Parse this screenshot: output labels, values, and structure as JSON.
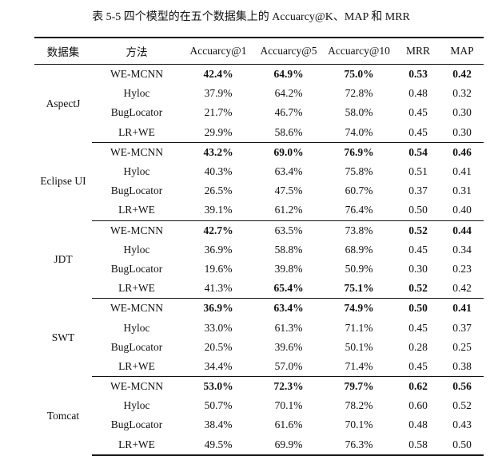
{
  "caption": "表 5-5 四个模型的在五个数据集上的 Accuarcy@K、MAP 和 MRR",
  "table": {
    "headers": [
      "数据集",
      "方法",
      "Accuarcy@1",
      "Accuarcy@5",
      "Accuarcy@10",
      "MRR",
      "MAP"
    ],
    "groups": [
      {
        "dataset": "AspectJ",
        "rows": [
          {
            "method": "WE-MCNN",
            "values": [
              "42.4%",
              "64.9%",
              "75.0%",
              "0.53",
              "0.42"
            ],
            "bold": [
              true,
              true,
              true,
              true,
              true
            ]
          },
          {
            "method": "Hyloc",
            "values": [
              "37.9%",
              "64.2%",
              "72.8%",
              "0.48",
              "0.32"
            ],
            "bold": [
              false,
              false,
              false,
              false,
              false
            ]
          },
          {
            "method": "BugLocator",
            "values": [
              "21.7%",
              "46.7%",
              "58.0%",
              "0.45",
              "0.30"
            ],
            "bold": [
              false,
              false,
              false,
              false,
              false
            ]
          },
          {
            "method": "LR+WE",
            "values": [
              "29.9%",
              "58.6%",
              "74.0%",
              "0.45",
              "0.30"
            ],
            "bold": [
              false,
              false,
              false,
              false,
              false
            ]
          }
        ]
      },
      {
        "dataset": "Eclipse UI",
        "rows": [
          {
            "method": "WE-MCNN",
            "values": [
              "43.2%",
              "69.0%",
              "76.9%",
              "0.54",
              "0.46"
            ],
            "bold": [
              true,
              true,
              true,
              true,
              true
            ]
          },
          {
            "method": "Hyloc",
            "values": [
              "40.3%",
              "63.4%",
              "75.8%",
              "0.51",
              "0.41"
            ],
            "bold": [
              false,
              false,
              false,
              false,
              false
            ]
          },
          {
            "method": "BugLocator",
            "values": [
              "26.5%",
              "47.5%",
              "60.7%",
              "0.37",
              "0.31"
            ],
            "bold": [
              false,
              false,
              false,
              false,
              false
            ]
          },
          {
            "method": "LR+WE",
            "values": [
              "39.1%",
              "61.2%",
              "76.4%",
              "0.50",
              "0.40"
            ],
            "bold": [
              false,
              false,
              false,
              false,
              false
            ]
          }
        ]
      },
      {
        "dataset": "JDT",
        "rows": [
          {
            "method": "WE-MCNN",
            "values": [
              "42.7%",
              "63.5%",
              "73.8%",
              "0.52",
              "0.44"
            ],
            "bold": [
              true,
              false,
              false,
              true,
              true
            ]
          },
          {
            "method": "Hyloc",
            "values": [
              "36.9%",
              "58.8%",
              "68.9%",
              "0.45",
              "0.34"
            ],
            "bold": [
              false,
              false,
              false,
              false,
              false
            ]
          },
          {
            "method": "BugLocator",
            "values": [
              "19.6%",
              "39.8%",
              "50.9%",
              "0.30",
              "0.23"
            ],
            "bold": [
              false,
              false,
              false,
              false,
              false
            ]
          },
          {
            "method": "LR+WE",
            "values": [
              "41.3%",
              "65.4%",
              "75.1%",
              "0.52",
              "0.42"
            ],
            "bold": [
              false,
              true,
              true,
              true,
              false
            ]
          }
        ]
      },
      {
        "dataset": "SWT",
        "rows": [
          {
            "method": "WE-MCNN",
            "values": [
              "36.9%",
              "63.4%",
              "74.9%",
              "0.50",
              "0.41"
            ],
            "bold": [
              true,
              true,
              true,
              true,
              true
            ]
          },
          {
            "method": "Hyloc",
            "values": [
              "33.0%",
              "61.3%",
              "71.1%",
              "0.45",
              "0.37"
            ],
            "bold": [
              false,
              false,
              false,
              false,
              false
            ]
          },
          {
            "method": "BugLocator",
            "values": [
              "20.5%",
              "39.6%",
              "50.1%",
              "0.28",
              "0.25"
            ],
            "bold": [
              false,
              false,
              false,
              false,
              false
            ]
          },
          {
            "method": "LR+WE",
            "values": [
              "34.4%",
              "57.0%",
              "71.4%",
              "0.45",
              "0.38"
            ],
            "bold": [
              false,
              false,
              false,
              false,
              false
            ]
          }
        ]
      },
      {
        "dataset": "Tomcat",
        "rows": [
          {
            "method": "WE-MCNN",
            "values": [
              "53.0%",
              "72.3%",
              "79.7%",
              "0.62",
              "0.56"
            ],
            "bold": [
              true,
              true,
              true,
              true,
              true
            ]
          },
          {
            "method": "Hyloc",
            "values": [
              "50.7%",
              "70.1%",
              "78.2%",
              "0.60",
              "0.52"
            ],
            "bold": [
              false,
              false,
              false,
              false,
              false
            ]
          },
          {
            "method": "BugLocator",
            "values": [
              "38.4%",
              "61.6%",
              "70.1%",
              "0.48",
              "0.43"
            ],
            "bold": [
              false,
              false,
              false,
              false,
              false
            ]
          },
          {
            "method": "LR+WE",
            "values": [
              "49.5%",
              "69.9%",
              "76.3%",
              "0.58",
              "0.50"
            ],
            "bold": [
              false,
              false,
              false,
              false,
              false
            ]
          }
        ]
      }
    ]
  }
}
